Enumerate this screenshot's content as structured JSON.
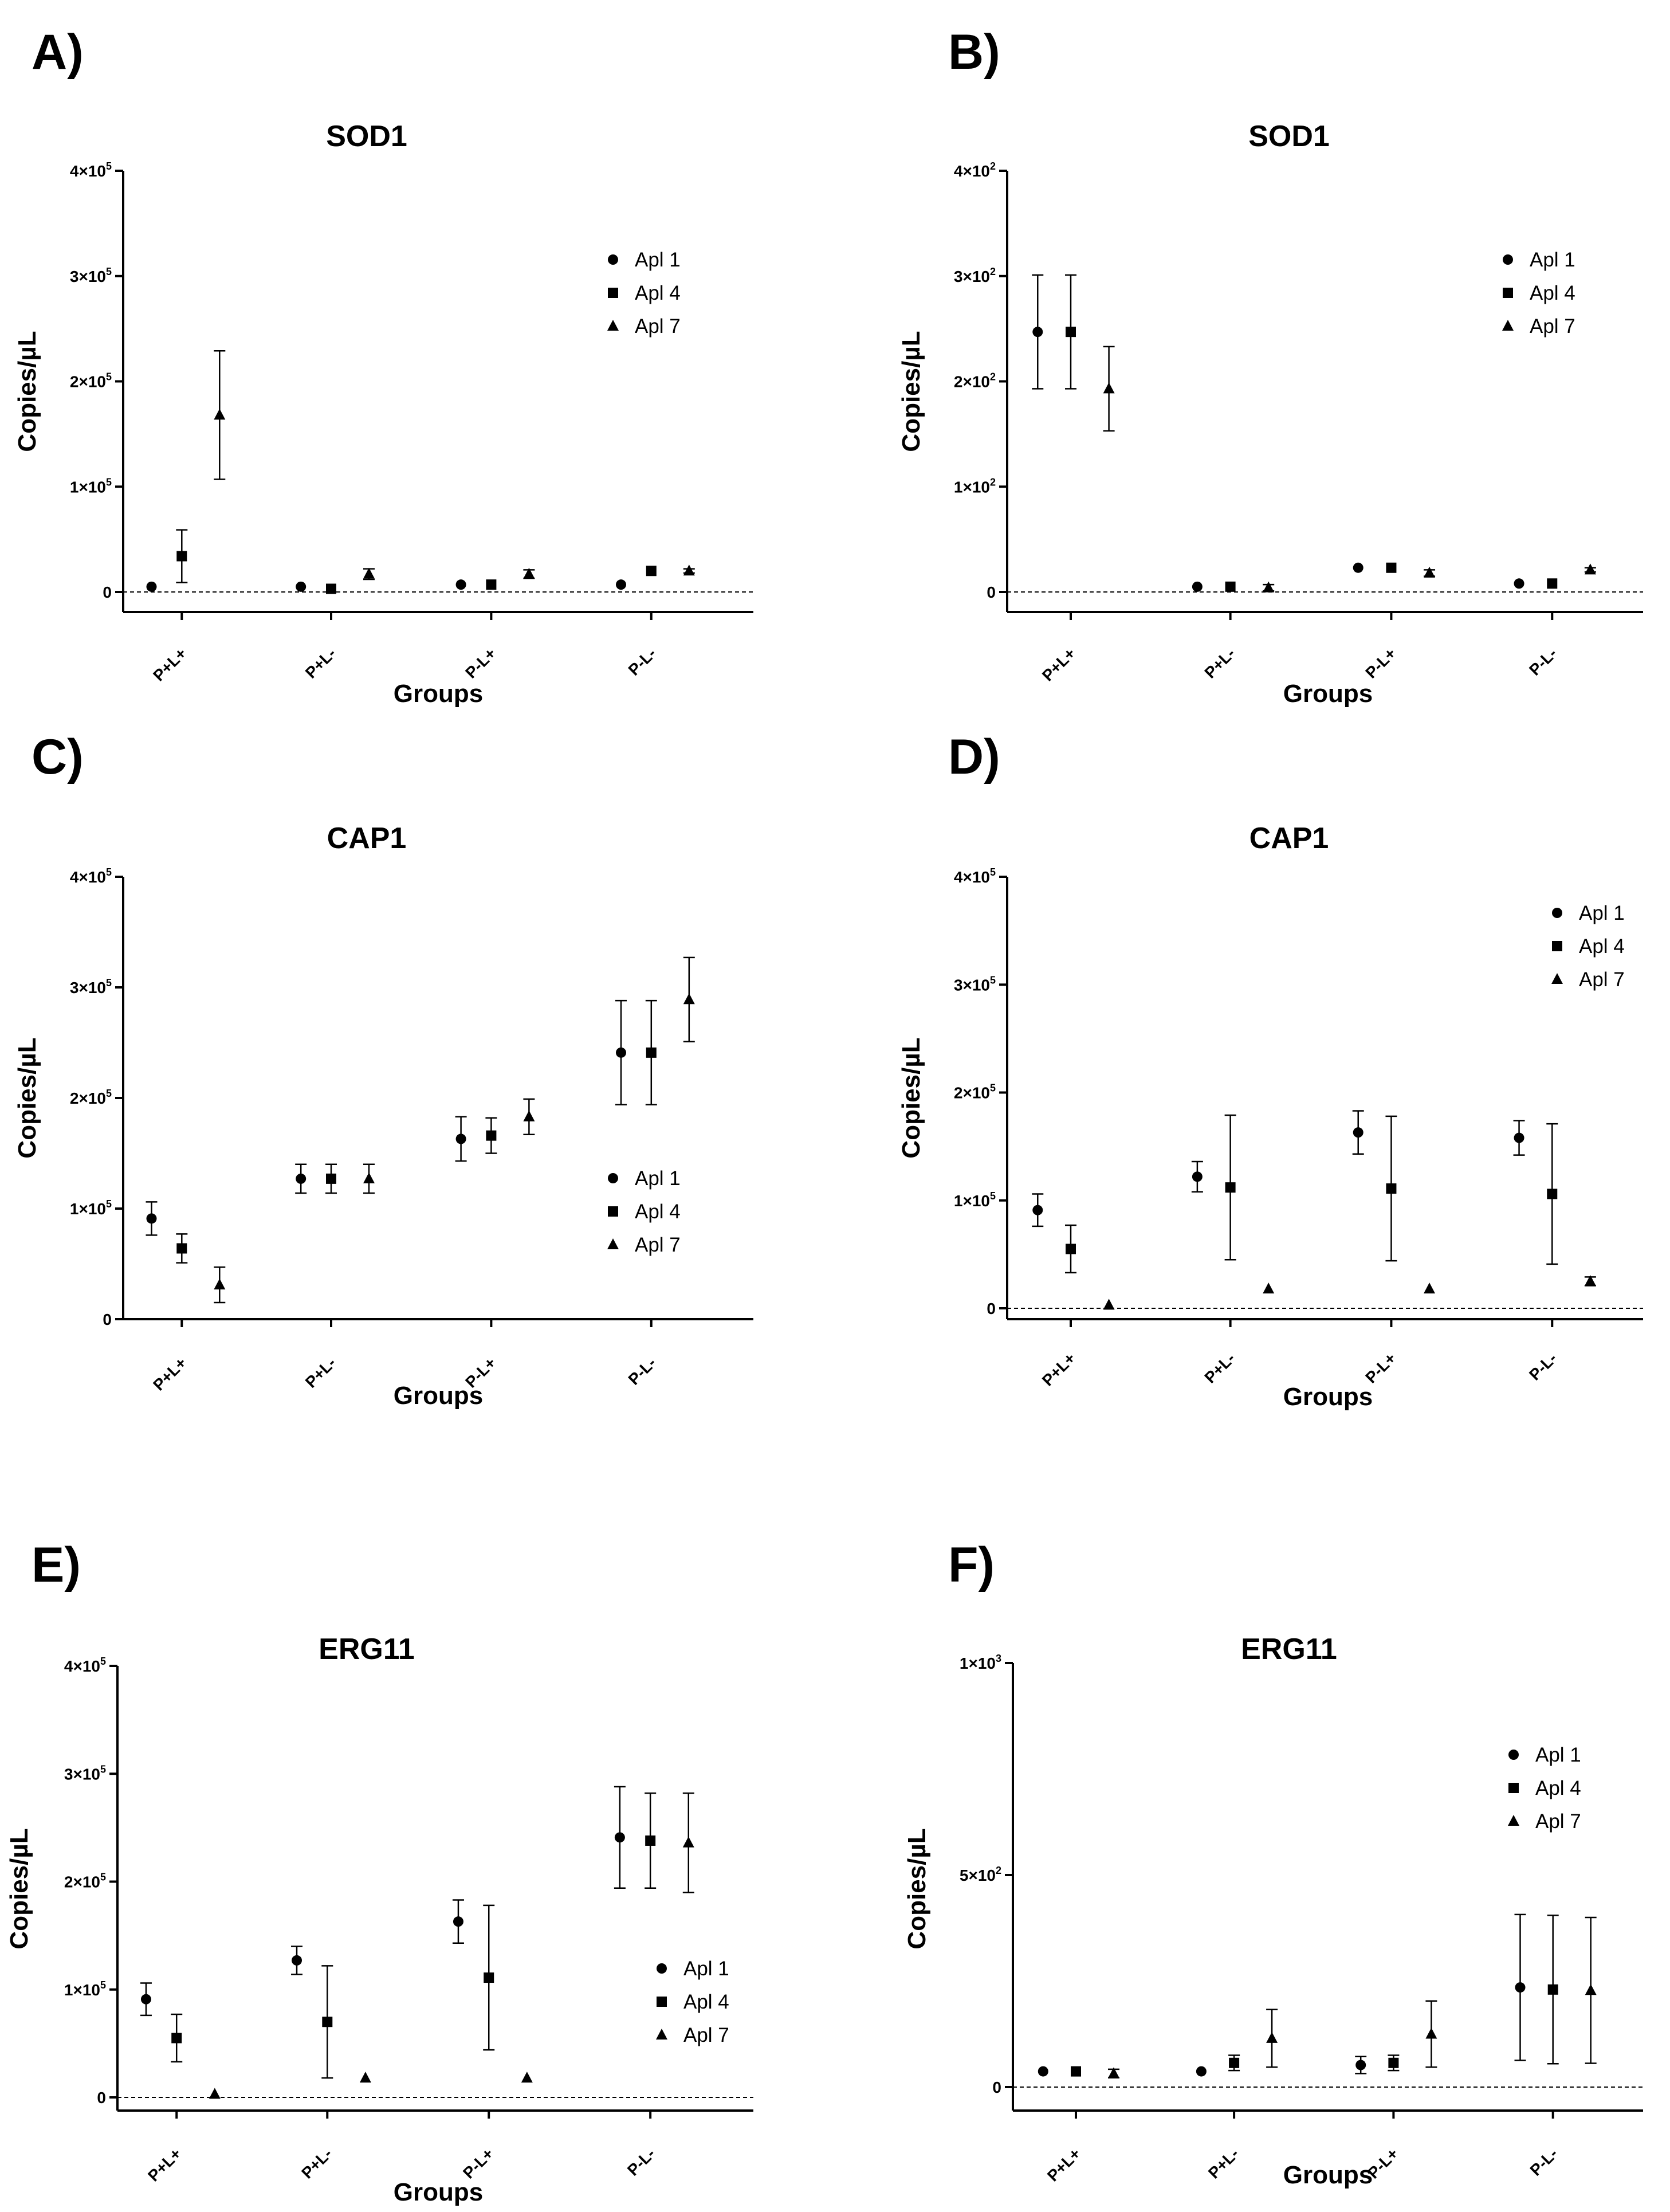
{
  "chart_data": [
    {
      "panel": "A)",
      "type": "scatter",
      "title": "SOD1",
      "xlabel": "Groups",
      "ylabel": "Copies/µL",
      "categories": [
        "P+L+",
        "P+L-",
        "P-L+",
        "P-L-"
      ],
      "ylim": [
        0,
        400000
      ],
      "yticks": [
        {
          "value": 0,
          "base": "0",
          "exp": ""
        },
        {
          "value": 100000,
          "base": "1×10",
          "exp": "5"
        },
        {
          "value": 200000,
          "base": "2×10",
          "exp": "5"
        },
        {
          "value": 300000,
          "base": "3×10",
          "exp": "5"
        },
        {
          "value": 400000,
          "base": "4×10",
          "exp": "5"
        }
      ],
      "legend": "top-right",
      "series": [
        {
          "name": "Apl 1",
          "marker": "circle",
          "values": [
            5000,
            5000,
            7000,
            7000
          ],
          "errors": [
            0,
            0,
            0,
            0
          ]
        },
        {
          "name": "Apl 4",
          "marker": "square",
          "values": [
            34000,
            3000,
            7000,
            20000
          ],
          "errors": [
            25000,
            0,
            0,
            0
          ]
        },
        {
          "name": "Apl 7",
          "marker": "triangle",
          "values": [
            168000,
            17000,
            17000,
            20000
          ],
          "errors": [
            61000,
            5000,
            4000,
            2000
          ]
        }
      ],
      "zero_line": true
    },
    {
      "panel": "B)",
      "type": "scatter",
      "title": "SOD1",
      "xlabel": "Groups",
      "ylabel": "Copies/µL",
      "categories": [
        "P+L+",
        "P+L-",
        "P-L+",
        "P-L-"
      ],
      "ylim": [
        0,
        400
      ],
      "yticks": [
        {
          "value": 0,
          "base": "0",
          "exp": ""
        },
        {
          "value": 100,
          "base": "1×10",
          "exp": "2"
        },
        {
          "value": 200,
          "base": "2×10",
          "exp": "2"
        },
        {
          "value": 300,
          "base": "3×10",
          "exp": "2"
        },
        {
          "value": 400,
          "base": "4×10",
          "exp": "2"
        }
      ],
      "legend": "top-right",
      "series": [
        {
          "name": "Apl 1",
          "marker": "circle",
          "values": [
            247,
            5,
            23,
            8
          ],
          "errors": [
            54,
            0,
            0,
            0
          ]
        },
        {
          "name": "Apl 4",
          "marker": "square",
          "values": [
            247,
            5,
            23,
            8
          ],
          "errors": [
            54,
            0,
            0,
            0
          ]
        },
        {
          "name": "Apl 7",
          "marker": "triangle",
          "values": [
            193,
            4,
            18,
            21
          ],
          "errors": [
            40,
            3,
            3,
            2
          ]
        }
      ],
      "zero_line": true
    },
    {
      "panel": "C)",
      "type": "scatter",
      "title": "CAP1",
      "xlabel": "Groups",
      "ylabel": "Copies/µL",
      "categories": [
        "P+L+",
        "P+L-",
        "P-L+",
        "P-L-"
      ],
      "ylim": [
        0,
        400000
      ],
      "yticks": [
        {
          "value": 0,
          "base": "0",
          "exp": ""
        },
        {
          "value": 100000,
          "base": "1×10",
          "exp": "5"
        },
        {
          "value": 200000,
          "base": "2×10",
          "exp": "5"
        },
        {
          "value": 300000,
          "base": "3×10",
          "exp": "5"
        },
        {
          "value": 400000,
          "base": "4×10",
          "exp": "5"
        }
      ],
      "legend": "bottom-right",
      "series": [
        {
          "name": "Apl 1",
          "marker": "circle",
          "values": [
            91000,
            127000,
            163000,
            241000
          ],
          "errors": [
            15000,
            13000,
            20000,
            47000
          ]
        },
        {
          "name": "Apl 4",
          "marker": "square",
          "values": [
            64000,
            127000,
            166000,
            241000
          ],
          "errors": [
            13000,
            13000,
            16000,
            47000
          ]
        },
        {
          "name": "Apl 7",
          "marker": "triangle",
          "values": [
            31000,
            127000,
            183000,
            289000
          ],
          "errors": [
            16000,
            13000,
            16000,
            38000
          ]
        }
      ],
      "zero_line": false
    },
    {
      "panel": "D)",
      "type": "scatter",
      "title": "CAP1",
      "xlabel": "Groups",
      "ylabel": "Copies/µL",
      "categories": [
        "P+L+",
        "P+L-",
        "P-L+",
        "P-L-"
      ],
      "ylim": [
        0,
        400000
      ],
      "yticks": [
        {
          "value": 0,
          "base": "0",
          "exp": ""
        },
        {
          "value": 100000,
          "base": "1×10",
          "exp": "5"
        },
        {
          "value": 200000,
          "base": "2×10",
          "exp": "5"
        },
        {
          "value": 300000,
          "base": "3×10",
          "exp": "5"
        },
        {
          "value": 400000,
          "base": "4×10",
          "exp": "5"
        }
      ],
      "legend": "top-right",
      "series": [
        {
          "name": "Apl 1",
          "marker": "circle",
          "values": [
            91000,
            122000,
            163000,
            158000
          ],
          "errors": [
            15000,
            14000,
            20000,
            16000
          ]
        },
        {
          "name": "Apl 4",
          "marker": "square",
          "values": [
            55000,
            112000,
            111000,
            106000
          ],
          "errors": [
            22000,
            67000,
            67000,
            65000
          ]
        },
        {
          "name": "Apl 7",
          "marker": "triangle",
          "values": [
            3000,
            18000,
            18000,
            25000
          ],
          "errors": [
            0,
            0,
            0,
            4000
          ]
        }
      ],
      "zero_line": true
    },
    {
      "panel": "E)",
      "type": "scatter",
      "title": "ERG11",
      "xlabel": "Groups",
      "ylabel": "Copies/µL",
      "categories": [
        "P+L+",
        "P+L-",
        "P-L+",
        "P-L-"
      ],
      "ylim": [
        0,
        400000
      ],
      "yticks": [
        {
          "value": 0,
          "base": "0",
          "exp": ""
        },
        {
          "value": 100000,
          "base": "1×10",
          "exp": "5"
        },
        {
          "value": 200000,
          "base": "2×10",
          "exp": "5"
        },
        {
          "value": 300000,
          "base": "3×10",
          "exp": "5"
        },
        {
          "value": 400000,
          "base": "4×10",
          "exp": "5"
        }
      ],
      "legend": "bottom-right",
      "series": [
        {
          "name": "Apl 1",
          "marker": "circle",
          "values": [
            91000,
            127000,
            163000,
            241000
          ],
          "errors": [
            15000,
            13000,
            20000,
            47000
          ]
        },
        {
          "name": "Apl 4",
          "marker": "square",
          "values": [
            55000,
            70000,
            111000,
            238000
          ],
          "errors": [
            22000,
            52000,
            67000,
            44000
          ]
        },
        {
          "name": "Apl 7",
          "marker": "triangle",
          "values": [
            3000,
            18000,
            18000,
            236000
          ],
          "errors": [
            0,
            0,
            0,
            46000
          ]
        }
      ],
      "zero_line": true
    },
    {
      "panel": "F)",
      "type": "scatter",
      "title": "ERG11",
      "xlabel": "Groups",
      "ylabel": "Copies/µL",
      "categories": [
        "P+L+",
        "P+L-",
        "P-L+",
        "P-L-"
      ],
      "ylim": [
        0,
        1000
      ],
      "yticks": [
        {
          "value": 0,
          "base": "0",
          "exp": ""
        },
        {
          "value": 500,
          "base": "5×10",
          "exp": "2"
        },
        {
          "value": 1000,
          "base": "1×10",
          "exp": "3"
        }
      ],
      "legend": "top-right",
      "series": [
        {
          "name": "Apl 1",
          "marker": "circle",
          "values": [
            37,
            37,
            52,
            235
          ],
          "errors": [
            0,
            0,
            20,
            172
          ]
        },
        {
          "name": "Apl 4",
          "marker": "square",
          "values": [
            37,
            57,
            57,
            230
          ],
          "errors": [
            0,
            18,
            18,
            175
          ]
        },
        {
          "name": "Apl 7",
          "marker": "triangle",
          "values": [
            32,
            115,
            125,
            228
          ],
          "errors": [
            10,
            68,
            78,
            172
          ]
        }
      ],
      "zero_line": true
    }
  ]
}
